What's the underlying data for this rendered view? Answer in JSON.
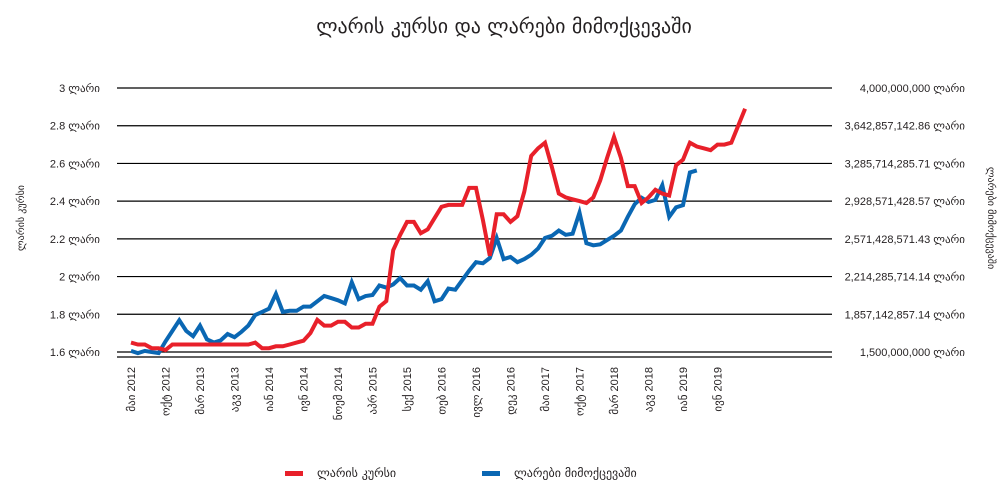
{
  "chart_data": {
    "type": "line",
    "title": "ლარის კურსი და ლარები მიმოქცევაში",
    "ylabel": "ლარის კურსი",
    "y2label": "ლარები მიმოქცევაში",
    "ylim": [
      1.6,
      3.0
    ],
    "y2lim": [
      1500000000,
      4000000000
    ],
    "yticks": [
      "1.6 ლარი",
      "1.8 ლარი",
      "2 ლარი",
      "2.2 ლარი",
      "2.4 ლარი",
      "2.6 ლარი",
      "2.8 ლარი",
      "3 ლარი"
    ],
    "yticks_values": [
      1.6,
      1.8,
      2.0,
      2.2,
      2.4,
      2.6,
      2.8,
      3.0
    ],
    "y2ticks": [
      "1,500,000,000 ლარი",
      "1,857,142,857.14 ლარი",
      "2,214,285,714.14 ლარი",
      "2,571,428,571.43 ლარი",
      "2,928,571,428.57 ლარი",
      "3,285,714,285.71 ლარი",
      "3,642,857,142.86 ლარი",
      "4,000,000,000 ლარი"
    ],
    "xticks": [
      "მაი 2012",
      "ოქტ 2012",
      "მარ 2013",
      "აგვ 2013",
      "იან 2014",
      "ივნ 2014",
      "ნოემ 2014",
      "აპრ 2015",
      "სექ 2015",
      "თებ 2016",
      "ივლ 2016",
      "დეკ 2016",
      "მაი 2017",
      "ოქტ 2017",
      "მარ 2018",
      "აგვ 2018",
      "იან 2019",
      "ივნ 2019"
    ],
    "x_start": "2012-05",
    "x_step_months": 1,
    "grid": true,
    "legend_position": "bottom",
    "series": [
      {
        "name": "ლარის კურსი",
        "color": "#e8202a",
        "axis": "left",
        "values": [
          1.65,
          1.64,
          1.64,
          1.62,
          1.62,
          1.61,
          1.64,
          1.64,
          1.64,
          1.64,
          1.64,
          1.64,
          1.64,
          1.64,
          1.64,
          1.64,
          1.64,
          1.64,
          1.65,
          1.62,
          1.62,
          1.63,
          1.63,
          1.64,
          1.65,
          1.66,
          1.7,
          1.77,
          1.74,
          1.74,
          1.76,
          1.76,
          1.73,
          1.73,
          1.75,
          1.75,
          1.84,
          1.87,
          2.14,
          2.22,
          2.29,
          2.29,
          2.23,
          2.25,
          2.31,
          2.37,
          2.38,
          2.38,
          2.38,
          2.47,
          2.47,
          2.3,
          2.11,
          2.33,
          2.33,
          2.29,
          2.32,
          2.45,
          2.64,
          2.68,
          2.71,
          2.58,
          2.44,
          2.42,
          2.41,
          2.4,
          2.39,
          2.42,
          2.51,
          2.63,
          2.74,
          2.63,
          2.48,
          2.48,
          2.39,
          2.42,
          2.46,
          2.44,
          2.43,
          2.59,
          2.62,
          2.71,
          2.69,
          2.68,
          2.67,
          2.7,
          2.7,
          2.71,
          2.8,
          2.89
        ]
      },
      {
        "name": "ლარები მიმოქცევაში",
        "color": "#0a67b3",
        "axis": "right",
        "values": [
          1510000000,
          1490000000,
          1510000000,
          1500000000,
          1490000000,
          1600000000,
          1700000000,
          1800000000,
          1700000000,
          1650000000,
          1750000000,
          1620000000,
          1590000000,
          1610000000,
          1670000000,
          1640000000,
          1690000000,
          1750000000,
          1850000000,
          1880000000,
          1910000000,
          2050000000,
          1880000000,
          1890000000,
          1890000000,
          1930000000,
          1930000000,
          1980000000,
          2030000000,
          2010000000,
          1990000000,
          1960000000,
          2160000000,
          2000000000,
          2030000000,
          2040000000,
          2130000000,
          2110000000,
          2140000000,
          2200000000,
          2130000000,
          2130000000,
          2090000000,
          2170000000,
          1980000000,
          2000000000,
          2100000000,
          2090000000,
          2180000000,
          2270000000,
          2350000000,
          2340000000,
          2390000000,
          2580000000,
          2380000000,
          2400000000,
          2350000000,
          2380000000,
          2420000000,
          2480000000,
          2580000000,
          2600000000,
          2650000000,
          2610000000,
          2620000000,
          2820000000,
          2530000000,
          2510000000,
          2520000000,
          2560000000,
          2600000000,
          2650000000,
          2780000000,
          2900000000,
          2960000000,
          2920000000,
          2940000000,
          3080000000,
          2780000000,
          2870000000,
          2890000000,
          3200000000,
          3220000000
        ]
      }
    ]
  }
}
